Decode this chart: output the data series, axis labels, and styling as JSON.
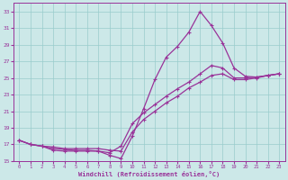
{
  "xlabel": "Windchill (Refroidissement éolien,°C)",
  "bg_color": "#cce8e8",
  "line_color": "#993399",
  "grid_color": "#99cccc",
  "xlim": [
    -0.5,
    23.5
  ],
  "ylim": [
    15,
    34
  ],
  "xticks": [
    0,
    1,
    2,
    3,
    4,
    5,
    6,
    7,
    8,
    9,
    10,
    11,
    12,
    13,
    14,
    15,
    16,
    17,
    18,
    19,
    20,
    21,
    22,
    23
  ],
  "yticks": [
    15,
    17,
    19,
    21,
    23,
    25,
    27,
    29,
    31,
    33
  ],
  "series1_x": [
    0,
    1,
    2,
    3,
    4,
    5,
    6,
    7,
    8,
    9,
    10,
    11,
    12,
    13,
    14,
    15,
    16,
    17,
    18,
    19,
    20,
    21,
    22,
    23
  ],
  "series1_y": [
    17.5,
    17.0,
    16.8,
    16.3,
    16.2,
    16.2,
    16.2,
    16.2,
    15.7,
    15.3,
    18.0,
    21.3,
    24.8,
    27.5,
    28.8,
    30.5,
    33.0,
    31.3,
    29.2,
    26.2,
    25.2,
    25.1,
    25.3,
    25.5
  ],
  "series2_x": [
    0,
    1,
    2,
    3,
    4,
    5,
    6,
    7,
    8,
    9,
    10,
    11,
    12,
    13,
    14,
    15,
    16,
    17,
    18,
    19,
    20,
    21,
    22,
    23
  ],
  "series2_y": [
    17.5,
    17.0,
    16.8,
    16.5,
    16.4,
    16.3,
    16.3,
    16.2,
    16.0,
    16.8,
    19.5,
    20.8,
    21.8,
    22.8,
    23.7,
    24.5,
    25.5,
    26.5,
    26.2,
    25.0,
    25.0,
    25.1,
    25.3,
    25.5
  ],
  "series3_x": [
    0,
    1,
    2,
    3,
    4,
    5,
    6,
    7,
    8,
    9,
    10,
    11,
    12,
    13,
    14,
    15,
    16,
    17,
    18,
    19,
    20,
    21,
    22,
    23
  ],
  "series3_y": [
    17.5,
    17.0,
    16.8,
    16.7,
    16.5,
    16.5,
    16.5,
    16.5,
    16.3,
    16.2,
    18.5,
    20.0,
    21.0,
    22.0,
    22.8,
    23.8,
    24.5,
    25.3,
    25.5,
    24.8,
    24.8,
    25.0,
    25.3,
    25.5
  ]
}
